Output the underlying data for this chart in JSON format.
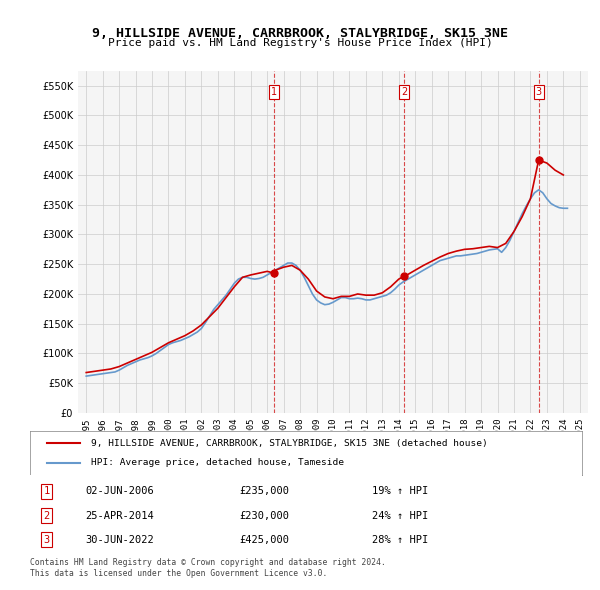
{
  "title": "9, HILLSIDE AVENUE, CARRBROOK, STALYBRIDGE, SK15 3NE",
  "subtitle": "Price paid vs. HM Land Registry's House Price Index (HPI)",
  "legend_house": "9, HILLSIDE AVENUE, CARRBROOK, STALYBRIDGE, SK15 3NE (detached house)",
  "legend_hpi": "HPI: Average price, detached house, Tameside",
  "footer1": "Contains HM Land Registry data © Crown copyright and database right 2024.",
  "footer2": "This data is licensed under the Open Government Licence v3.0.",
  "transactions": [
    {
      "num": 1,
      "date": "02-JUN-2006",
      "price": "£235,000",
      "pct": "19% ↑ HPI",
      "year": 2006.42
    },
    {
      "num": 2,
      "date": "25-APR-2014",
      "price": "£230,000",
      "pct": "24% ↑ HPI",
      "year": 2014.32
    },
    {
      "num": 3,
      "date": "30-JUN-2022",
      "price": "£425,000",
      "pct": "28% ↑ HPI",
      "year": 2022.5
    }
  ],
  "hpi_color": "#6699cc",
  "house_color": "#cc0000",
  "vline_color": "#cc0000",
  "background_color": "#ffffff",
  "plot_bg_color": "#f5f5f5",
  "ylim": [
    0,
    575000
  ],
  "yticks": [
    0,
    50000,
    100000,
    150000,
    200000,
    250000,
    300000,
    350000,
    400000,
    450000,
    500000,
    550000
  ],
  "hpi_data": {
    "years": [
      1995.0,
      1995.25,
      1995.5,
      1995.75,
      1996.0,
      1996.25,
      1996.5,
      1996.75,
      1997.0,
      1997.25,
      1997.5,
      1997.75,
      1998.0,
      1998.25,
      1998.5,
      1998.75,
      1999.0,
      1999.25,
      1999.5,
      1999.75,
      2000.0,
      2000.25,
      2000.5,
      2000.75,
      2001.0,
      2001.25,
      2001.5,
      2001.75,
      2002.0,
      2002.25,
      2002.5,
      2002.75,
      2003.0,
      2003.25,
      2003.5,
      2003.75,
      2004.0,
      2004.25,
      2004.5,
      2004.75,
      2005.0,
      2005.25,
      2005.5,
      2005.75,
      2006.0,
      2006.25,
      2006.5,
      2006.75,
      2007.0,
      2007.25,
      2007.5,
      2007.75,
      2008.0,
      2008.25,
      2008.5,
      2008.75,
      2009.0,
      2009.25,
      2009.5,
      2009.75,
      2010.0,
      2010.25,
      2010.5,
      2010.75,
      2011.0,
      2011.25,
      2011.5,
      2011.75,
      2012.0,
      2012.25,
      2012.5,
      2012.75,
      2013.0,
      2013.25,
      2013.5,
      2013.75,
      2014.0,
      2014.25,
      2014.5,
      2014.75,
      2015.0,
      2015.25,
      2015.5,
      2015.75,
      2016.0,
      2016.25,
      2016.5,
      2016.75,
      2017.0,
      2017.25,
      2017.5,
      2017.75,
      2018.0,
      2018.25,
      2018.5,
      2018.75,
      2019.0,
      2019.25,
      2019.5,
      2019.75,
      2020.0,
      2020.25,
      2020.5,
      2020.75,
      2021.0,
      2021.25,
      2021.5,
      2021.75,
      2022.0,
      2022.25,
      2022.5,
      2022.75,
      2023.0,
      2023.25,
      2023.5,
      2023.75,
      2024.0,
      2024.25
    ],
    "values": [
      62000,
      63000,
      64000,
      65000,
      66000,
      67000,
      68000,
      69000,
      72000,
      76000,
      80000,
      83000,
      86000,
      89000,
      91000,
      93000,
      96000,
      100000,
      105000,
      110000,
      115000,
      118000,
      120000,
      122000,
      125000,
      128000,
      132000,
      136000,
      142000,
      152000,
      163000,
      174000,
      182000,
      190000,
      198000,
      208000,
      218000,
      225000,
      228000,
      228000,
      226000,
      225000,
      226000,
      228000,
      232000,
      236000,
      240000,
      244000,
      248000,
      252000,
      252000,
      248000,
      240000,
      228000,
      214000,
      200000,
      190000,
      185000,
      182000,
      183000,
      186000,
      190000,
      194000,
      194000,
      192000,
      192000,
      193000,
      192000,
      190000,
      190000,
      192000,
      194000,
      196000,
      198000,
      202000,
      208000,
      215000,
      220000,
      224000,
      228000,
      232000,
      236000,
      240000,
      244000,
      248000,
      252000,
      256000,
      258000,
      260000,
      262000,
      264000,
      264000,
      265000,
      266000,
      267000,
      268000,
      270000,
      272000,
      274000,
      275000,
      276000,
      270000,
      278000,
      290000,
      305000,
      320000,
      335000,
      348000,
      360000,
      370000,
      375000,
      370000,
      360000,
      352000,
      348000,
      345000,
      344000,
      344000
    ]
  },
  "house_data": {
    "years": [
      1995.0,
      1995.5,
      1996.0,
      1996.5,
      1997.0,
      1997.5,
      1998.0,
      1998.5,
      1999.0,
      1999.5,
      2000.0,
      2000.5,
      2001.0,
      2001.5,
      2002.0,
      2002.5,
      2003.0,
      2003.5,
      2004.0,
      2004.5,
      2005.0,
      2005.5,
      2006.0,
      2006.42,
      2006.5,
      2007.0,
      2007.5,
      2008.0,
      2008.5,
      2009.0,
      2009.5,
      2010.0,
      2010.5,
      2011.0,
      2011.5,
      2012.0,
      2012.5,
      2013.0,
      2013.5,
      2014.0,
      2014.32,
      2014.5,
      2015.0,
      2015.5,
      2016.0,
      2016.5,
      2017.0,
      2017.5,
      2018.0,
      2018.5,
      2019.0,
      2019.5,
      2020.0,
      2020.5,
      2021.0,
      2021.5,
      2022.0,
      2022.5,
      2022.5,
      2023.0,
      2023.5,
      2024.0
    ],
    "values": [
      68000,
      70000,
      72000,
      74000,
      78000,
      84000,
      90000,
      96000,
      102000,
      110000,
      118000,
      124000,
      130000,
      138000,
      148000,
      162000,
      176000,
      194000,
      212000,
      228000,
      232000,
      235000,
      238000,
      235000,
      240000,
      245000,
      248000,
      240000,
      225000,
      205000,
      195000,
      192000,
      196000,
      196000,
      200000,
      198000,
      198000,
      202000,
      212000,
      225000,
      230000,
      232000,
      240000,
      248000,
      255000,
      262000,
      268000,
      272000,
      275000,
      276000,
      278000,
      280000,
      278000,
      285000,
      305000,
      330000,
      360000,
      425000,
      425000,
      420000,
      408000,
      400000
    ]
  }
}
